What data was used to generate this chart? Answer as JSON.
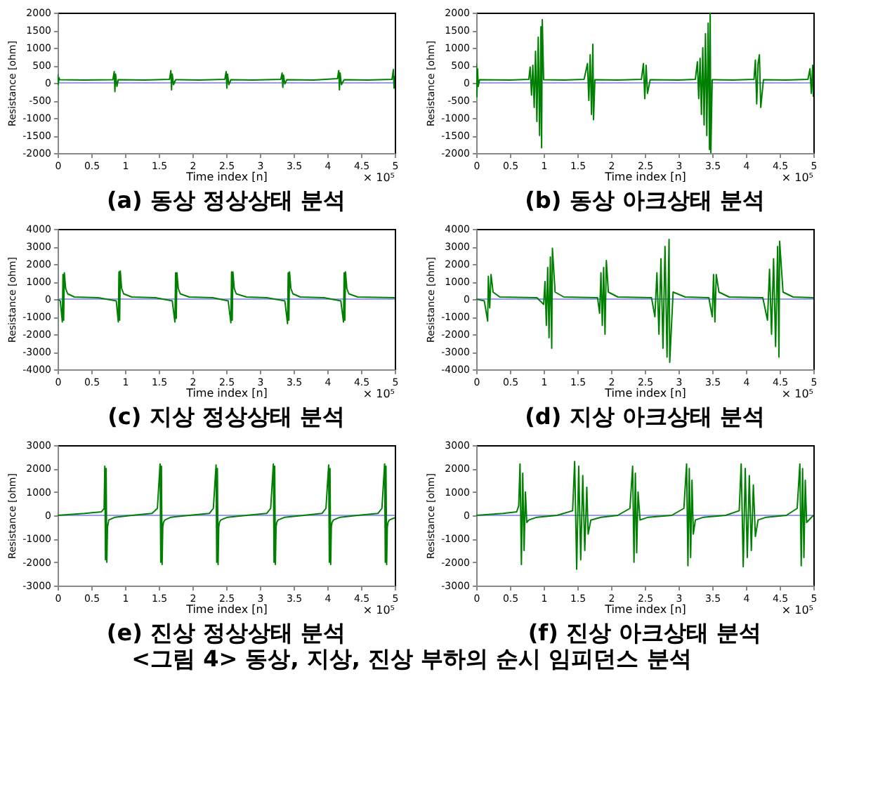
{
  "chart_data": [
    {
      "type": "line",
      "title": "(a) 동상 정상상태 분석",
      "xlabel": "Time index [n]",
      "ylabel": "Resistance [ohm]",
      "annotations": [
        "× 10⁵"
      ],
      "xlim": [
        0,
        5
      ],
      "xticks": [
        0,
        0.5,
        1,
        1.5,
        2,
        2.5,
        3,
        3.5,
        4,
        4.5,
        5
      ],
      "ylim": [
        -2000,
        2000
      ],
      "yticks": [
        -2000,
        -1500,
        -1000,
        -500,
        0,
        500,
        1000,
        1500,
        2000
      ],
      "series": [
        {
          "color": "#9999ff",
          "x": [
            0,
            5
          ],
          "values": [
            0,
            0
          ]
        },
        {
          "color": "#008000",
          "x": [
            0,
            0.01,
            0.02,
            0.03,
            0.4,
            0.82,
            0.84,
            0.85,
            0.86,
            0.88,
            0.9,
            1.3,
            1.66,
            1.68,
            1.69,
            1.7,
            1.72,
            1.75,
            2.1,
            2.48,
            2.5,
            2.51,
            2.52,
            2.54,
            2.57,
            2.9,
            3.31,
            3.33,
            3.34,
            3.35,
            3.37,
            3.4,
            3.8,
            4.15,
            4.17,
            4.18,
            4.19,
            4.21,
            4.25,
            4.6,
            4.96,
            4.98,
            4.99,
            5.0
          ],
          "values": [
            250,
            -50,
            150,
            90,
            80,
            90,
            320,
            -250,
            250,
            -100,
            90,
            80,
            100,
            350,
            -200,
            250,
            -50,
            90,
            80,
            100,
            320,
            -150,
            250,
            -50,
            90,
            80,
            100,
            280,
            -130,
            220,
            -30,
            90,
            80,
            120,
            350,
            -200,
            280,
            -50,
            90,
            80,
            100,
            380,
            -150,
            200
          ]
        }
      ]
    },
    {
      "type": "line",
      "title": "(b) 동상 아크상태 분석",
      "xlabel": "Time index [n]",
      "ylabel": "Resistance [ohm]",
      "annotations": [
        "× 10⁵"
      ],
      "xlim": [
        0,
        5
      ],
      "xticks": [
        0,
        0.5,
        1,
        1.5,
        2,
        2.5,
        3,
        3.5,
        4,
        4.5,
        5
      ],
      "ylim": [
        -2000,
        2000
      ],
      "yticks": [
        -2000,
        -1500,
        -1000,
        -500,
        0,
        500,
        1000,
        1500,
        2000
      ],
      "series": [
        {
          "color": "#9999ff",
          "x": [
            0,
            5
          ],
          "values": [
            0,
            0
          ]
        },
        {
          "color": "#008000",
          "x": [
            0,
            0.01,
            0.02,
            0.03,
            0.05,
            0.5,
            0.78,
            0.8,
            0.82,
            0.84,
            0.86,
            0.88,
            0.9,
            0.92,
            0.94,
            0.96,
            0.97,
            0.98,
            1.0,
            1.3,
            1.6,
            1.65,
            1.67,
            1.69,
            1.71,
            1.73,
            1.74,
            1.76,
            2.1,
            2.45,
            2.48,
            2.5,
            2.52,
            2.54,
            2.58,
            3.0,
            3.25,
            3.28,
            3.3,
            3.32,
            3.34,
            3.36,
            3.38,
            3.4,
            3.42,
            3.44,
            3.46,
            3.47,
            3.48,
            3.5,
            3.8,
            4.12,
            4.14,
            4.16,
            4.18,
            4.2,
            4.22,
            4.26,
            4.6,
            4.92,
            4.95,
            4.97,
            4.99,
            5.0
          ],
          "values": [
            550,
            -400,
            400,
            -100,
            90,
            80,
            100,
            450,
            -350,
            500,
            -700,
            900,
            -1100,
            1300,
            -1500,
            1600,
            -1850,
            1800,
            90,
            80,
            100,
            550,
            -500,
            800,
            -900,
            1100,
            -1050,
            90,
            80,
            100,
            550,
            -450,
            500,
            -300,
            90,
            80,
            100,
            600,
            -450,
            700,
            -900,
            1000,
            -1200,
            1400,
            -1500,
            1700,
            -1900,
            2000,
            -2000,
            90,
            80,
            100,
            650,
            -600,
            550,
            800,
            -700,
            90,
            80,
            100,
            400,
            -300,
            500,
            -400
          ]
        }
      ]
    },
    {
      "type": "line",
      "title": "(c) 지상 정상상태 분석",
      "xlabel": "Time index [n]",
      "ylabel": "Resistance [ohm]",
      "annotations": [
        "× 10⁵"
      ],
      "xlim": [
        0,
        5
      ],
      "xticks": [
        0,
        0.5,
        1,
        1.5,
        2,
        2.5,
        3,
        3.5,
        4,
        4.5,
        5
      ],
      "ylim": [
        -4000,
        4000
      ],
      "yticks": [
        -4000,
        -3000,
        -2000,
        -1000,
        0,
        1000,
        2000,
        3000,
        4000
      ],
      "series": [
        {
          "color": "#9999ff",
          "x": [
            0,
            5
          ],
          "values": [
            0,
            0
          ]
        },
        {
          "color": "#008000",
          "x": [
            0,
            0.04,
            0.07,
            0.08,
            0.09,
            0.1,
            0.12,
            0.15,
            0.25,
            0.6,
            0.87,
            0.9,
            0.91,
            0.92,
            0.93,
            0.95,
            0.98,
            1.1,
            1.45,
            1.7,
            1.74,
            1.75,
            1.76,
            1.77,
            1.79,
            1.82,
            1.95,
            2.3,
            2.53,
            2.57,
            2.58,
            2.59,
            2.6,
            2.62,
            2.65,
            2.8,
            3.1,
            3.37,
            3.41,
            3.42,
            3.43,
            3.44,
            3.46,
            3.49,
            3.6,
            3.95,
            4.2,
            4.24,
            4.25,
            4.26,
            4.27,
            4.29,
            4.32,
            4.45,
            5.0
          ],
          "values": [
            0,
            -100,
            -1300,
            1400,
            -1200,
            1500,
            600,
            300,
            120,
            80,
            -100,
            -1300,
            1550,
            -1200,
            1600,
            600,
            300,
            120,
            80,
            -100,
            -1300,
            1500,
            -1100,
            1500,
            600,
            300,
            120,
            80,
            -100,
            -1350,
            1550,
            -1200,
            1550,
            600,
            300,
            120,
            80,
            -100,
            -1400,
            1500,
            -1200,
            1550,
            600,
            300,
            120,
            80,
            -100,
            -1300,
            1500,
            -1200,
            1550,
            600,
            300,
            120,
            80
          ]
        }
      ]
    },
    {
      "type": "line",
      "title": "(d) 지상 아크상태 분석",
      "xlabel": "Time index [n]",
      "ylabel": "Resistance [ohm]",
      "annotations": [
        "× 10⁵"
      ],
      "xlim": [
        0,
        5
      ],
      "xticks": [
        0,
        0.5,
        1,
        1.5,
        2,
        2.5,
        3,
        3.5,
        4,
        4.5,
        5
      ],
      "ylim": [
        -4000,
        4000
      ],
      "yticks": [
        -4000,
        -3000,
        -2000,
        -1000,
        0,
        1000,
        2000,
        3000,
        4000
      ],
      "series": [
        {
          "color": "#9999ff",
          "x": [
            0,
            5
          ],
          "values": [
            0,
            0
          ]
        },
        {
          "color": "#008000",
          "x": [
            0,
            0.12,
            0.17,
            0.18,
            0.2,
            0.22,
            0.25,
            0.35,
            0.9,
            1.0,
            1.02,
            1.04,
            1.06,
            1.08,
            1.1,
            1.12,
            1.13,
            1.17,
            1.3,
            1.8,
            1.83,
            1.85,
            1.87,
            1.89,
            1.91,
            1.93,
            1.96,
            2.1,
            2.6,
            2.65,
            2.68,
            2.71,
            2.74,
            2.77,
            2.8,
            2.83,
            2.86,
            2.87,
            2.92,
            3.1,
            3.45,
            3.5,
            3.52,
            3.54,
            3.56,
            3.6,
            3.75,
            4.25,
            4.32,
            4.35,
            4.38,
            4.41,
            4.44,
            4.47,
            4.49,
            4.5,
            4.55,
            4.7,
            5.0
          ],
          "values": [
            0,
            -100,
            -1250,
            1300,
            -500,
            1400,
            400,
            120,
            80,
            -300,
            1000,
            -1500,
            1800,
            -2200,
            2400,
            -2800,
            2900,
            400,
            120,
            80,
            -800,
            1500,
            -1500,
            1800,
            -2000,
            2200,
            400,
            120,
            80,
            -1000,
            1500,
            -2000,
            2300,
            -2800,
            3000,
            -3300,
            3400,
            -3600,
            400,
            120,
            80,
            -1000,
            1400,
            -1300,
            1400,
            400,
            120,
            80,
            -1200,
            1700,
            -2000,
            2300,
            -2700,
            3000,
            -3300,
            3300,
            400,
            120,
            80
          ]
        }
      ]
    },
    {
      "type": "line",
      "title": "(e) 진상 정상상태 분석",
      "xlabel": "Time index [n]",
      "ylabel": "Resistance [ohm]",
      "annotations": [
        "× 10⁵"
      ],
      "xlim": [
        0,
        5
      ],
      "xticks": [
        0,
        0.5,
        1,
        1.5,
        2,
        2.5,
        3,
        3.5,
        4,
        4.5,
        5
      ],
      "ylim": [
        -3000,
        3000
      ],
      "yticks": [
        -3000,
        -2000,
        -1000,
        0,
        1000,
        2000,
        3000
      ],
      "series": [
        {
          "color": "#9999ff",
          "x": [
            0,
            5
          ],
          "values": [
            0,
            0
          ]
        },
        {
          "color": "#008000",
          "x": [
            0,
            0.4,
            0.65,
            0.69,
            0.7,
            0.71,
            0.72,
            0.73,
            0.74,
            0.76,
            0.85,
            1.1,
            1.4,
            1.48,
            1.52,
            1.53,
            1.54,
            1.55,
            1.56,
            1.57,
            1.59,
            1.68,
            1.95,
            2.25,
            2.31,
            2.35,
            2.36,
            2.37,
            2.38,
            2.39,
            2.4,
            2.42,
            2.52,
            2.8,
            3.1,
            3.16,
            3.2,
            3.21,
            3.22,
            3.23,
            3.24,
            3.25,
            3.27,
            3.37,
            3.65,
            3.92,
            3.98,
            4.02,
            4.03,
            4.04,
            4.05,
            4.06,
            4.07,
            4.09,
            4.19,
            4.45,
            4.75,
            4.81,
            4.85,
            4.86,
            4.87,
            4.88,
            4.89,
            4.9,
            4.92,
            5.0
          ],
          "values": [
            0,
            80,
            150,
            300,
            2100,
            -1900,
            2000,
            -2000,
            -500,
            -200,
            -80,
            0,
            80,
            300,
            2200,
            -2000,
            2100,
            -2100,
            -500,
            -300,
            -200,
            -80,
            0,
            80,
            300,
            2150,
            -2000,
            2000,
            -2100,
            -500,
            -300,
            -200,
            -80,
            0,
            80,
            300,
            2200,
            -2000,
            2100,
            -2100,
            -500,
            -300,
            -200,
            -80,
            0,
            80,
            300,
            2150,
            -2000,
            2000,
            -2100,
            -500,
            -300,
            -200,
            -80,
            0,
            80,
            300,
            2200,
            -2000,
            2100,
            -2100,
            -500,
            -300,
            -200,
            -100
          ]
        }
      ]
    },
    {
      "type": "line",
      "title": "(f) 진상 아크상태 분석",
      "xlabel": "Time index [n]",
      "ylabel": "Resistance [ohm]",
      "annotations": [
        "× 10⁵",
        "<그림 4> 동상, 지상, 진상 부하의 순시 임피던스 분석"
      ],
      "xlim": [
        0,
        5
      ],
      "xticks": [
        0,
        0.5,
        1,
        1.5,
        2,
        2.5,
        3,
        3.5,
        4,
        4.5,
        5
      ],
      "ylim": [
        -3000,
        3000
      ],
      "yticks": [
        -3000,
        -2000,
        -1000,
        0,
        1000,
        2000,
        3000
      ],
      "series": [
        {
          "color": "#9999ff",
          "x": [
            0,
            5
          ],
          "values": [
            0,
            0
          ]
        },
        {
          "color": "#008000",
          "x": [
            0,
            0.4,
            0.6,
            0.63,
            0.65,
            0.67,
            0.69,
            0.71,
            0.73,
            0.75,
            0.78,
            0.9,
            1.2,
            1.43,
            1.46,
            1.49,
            1.52,
            1.55,
            1.58,
            1.61,
            1.64,
            1.66,
            1.7,
            1.85,
            2.1,
            2.28,
            2.32,
            2.34,
            2.36,
            2.38,
            2.4,
            2.43,
            2.55,
            2.9,
            3.08,
            3.12,
            3.14,
            3.16,
            3.18,
            3.2,
            3.22,
            3.25,
            3.37,
            3.7,
            3.9,
            3.93,
            3.96,
            3.99,
            4.02,
            4.05,
            4.08,
            4.11,
            4.14,
            4.18,
            4.3,
            4.6,
            4.76,
            4.8,
            4.82,
            4.84,
            4.86,
            4.88,
            4.9,
            5.0
          ],
          "values": [
            0,
            80,
            150,
            400,
            2200,
            -2100,
            1800,
            -1500,
            1000,
            -300,
            -200,
            -80,
            0,
            200,
            2300,
            -2300,
            2100,
            -1900,
            1700,
            -1500,
            1200,
            -800,
            -200,
            -80,
            0,
            300,
            2100,
            -2000,
            1800,
            -1600,
            1000,
            -200,
            -80,
            0,
            300,
            2200,
            -2150,
            2000,
            -1800,
            1500,
            -800,
            -200,
            -80,
            0,
            200,
            2200,
            -2200,
            2000,
            -1800,
            1700,
            -1500,
            1300,
            -900,
            -200,
            -80,
            0,
            300,
            2200,
            -2150,
            2000,
            -1800,
            1500,
            -300,
            0
          ]
        }
      ]
    }
  ]
}
